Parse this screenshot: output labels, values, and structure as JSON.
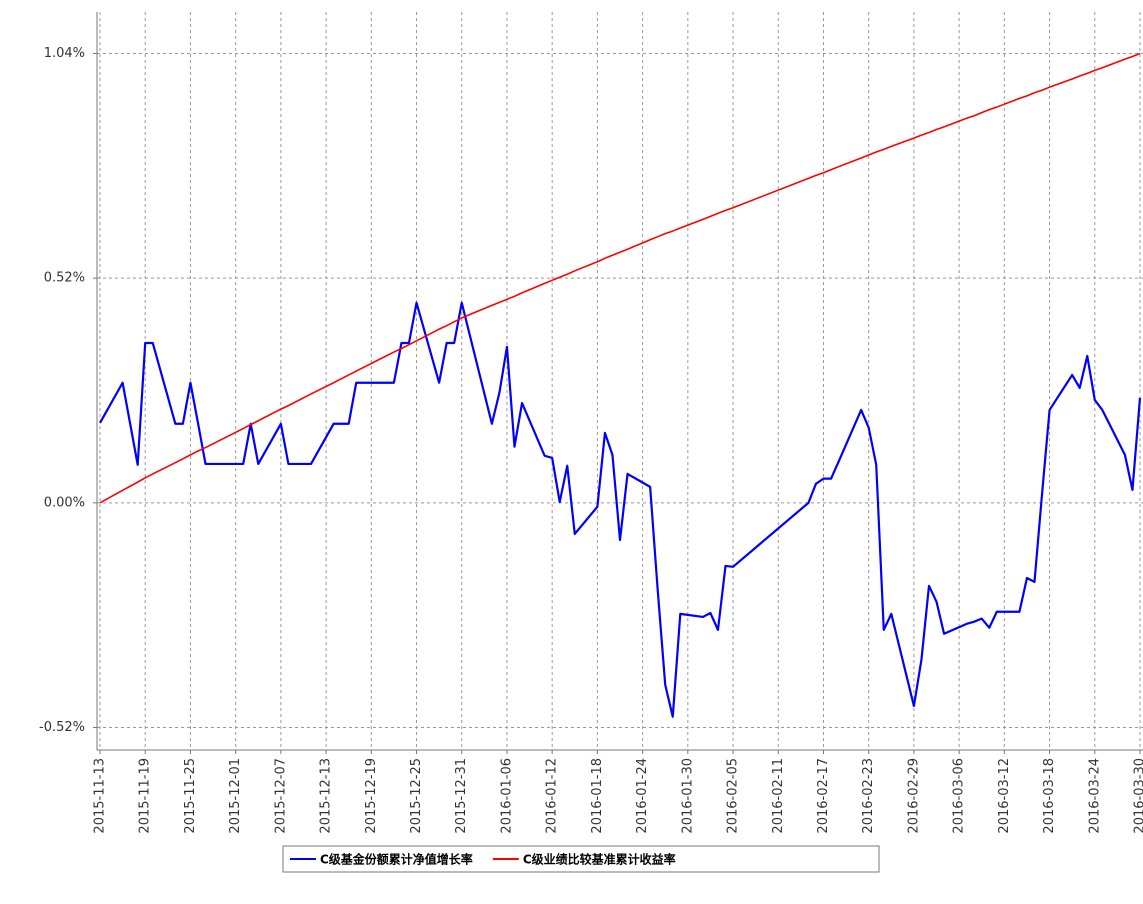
{
  "chart_data": {
    "type": "line",
    "x": [
      "2015-11-13",
      "2015-11-16",
      "2015-11-18",
      "2015-11-19",
      "2015-11-20",
      "2015-11-23",
      "2015-11-24",
      "2015-11-25",
      "2015-11-26",
      "2015-11-27",
      "2015-12-02",
      "2015-12-03",
      "2015-12-04",
      "2015-12-07",
      "2015-12-08",
      "2015-12-11",
      "2015-12-14",
      "2015-12-16",
      "2015-12-17",
      "2015-12-22",
      "2015-12-23",
      "2015-12-24",
      "2015-12-25",
      "2015-12-28",
      "2015-12-29",
      "2015-12-30",
      "2015-12-31",
      "2016-01-04",
      "2016-01-05",
      "2016-01-06",
      "2016-01-07",
      "2016-01-08",
      "2016-01-11",
      "2016-01-12",
      "2016-01-13",
      "2016-01-14",
      "2016-01-15",
      "2016-01-18",
      "2016-01-19",
      "2016-01-20",
      "2016-01-21",
      "2016-01-22",
      "2016-01-25",
      "2016-01-26",
      "2016-01-27",
      "2016-01-28",
      "2016-01-29",
      "2016-02-01",
      "2016-02-02",
      "2016-02-03",
      "2016-02-04",
      "2016-02-05",
      "2016-02-15",
      "2016-02-16",
      "2016-02-17",
      "2016-02-18",
      "2016-02-19",
      "2016-02-22",
      "2016-02-23",
      "2016-02-24",
      "2016-02-25",
      "2016-02-26",
      "2016-02-29",
      "2016-03-01",
      "2016-03-02",
      "2016-03-03",
      "2016-03-04",
      "2016-03-07",
      "2016-03-08",
      "2016-03-09",
      "2016-03-10",
      "2016-03-11",
      "2016-03-14",
      "2016-03-15",
      "2016-03-16",
      "2016-03-17",
      "2016-03-18",
      "2016-03-21",
      "2016-03-22",
      "2016-03-23",
      "2016-03-24",
      "2016-03-25",
      "2016-03-28",
      "2016-03-29",
      "2016-03-30"
    ],
    "series": [
      {
        "name": "C级基金份额累计净值增长率",
        "color": "#0000ff",
        "values": [
          0.185,
          0.278,
          0.088,
          0.37,
          0.37,
          0.183,
          0.183,
          0.278,
          0.185,
          0.09,
          0.09,
          0.183,
          0.09,
          0.183,
          0.09,
          0.09,
          0.183,
          0.183,
          0.278,
          0.278,
          0.37,
          0.37,
          0.463,
          0.278,
          0.37,
          0.37,
          0.463,
          0.183,
          0.255,
          0.361,
          0.13,
          0.231,
          0.109,
          0.104,
          0.002,
          0.086,
          -0.072,
          -0.009,
          0.162,
          0.111,
          -0.086,
          0.067,
          0.037,
          -0.201,
          -0.421,
          -0.495,
          -0.257,
          -0.264,
          -0.255,
          -0.294,
          -0.146,
          -0.148,
          0.0,
          0.044,
          0.056,
          0.056,
          0.095,
          0.215,
          0.174,
          0.088,
          -0.294,
          -0.257,
          -0.47,
          -0.363,
          -0.192,
          -0.229,
          -0.303,
          -0.28,
          -0.275,
          -0.268,
          -0.289,
          -0.252,
          -0.252,
          -0.174,
          -0.183,
          0.02,
          0.215,
          0.296,
          0.266,
          0.34,
          0.238,
          0.215,
          0.111,
          0.03,
          0.243
        ]
      },
      {
        "name": "C级业绩比较基准累计收益率",
        "color": "#ff0000",
        "values": [
          0,
          0.029,
          0.048,
          0.058,
          0.067,
          0.093,
          0.102,
          0.111,
          0.12,
          0.128,
          0.172,
          0.181,
          0.19,
          0.217,
          0.225,
          0.252,
          0.278,
          0.296,
          0.305,
          0.349,
          0.357,
          0.366,
          0.375,
          0.402,
          0.41,
          0.419,
          0.428,
          0.457,
          0.464,
          0.471,
          0.478,
          0.486,
          0.508,
          0.515,
          0.522,
          0.529,
          0.537,
          0.558,
          0.566,
          0.573,
          0.58,
          0.587,
          0.609,
          0.616,
          0.623,
          0.629,
          0.636,
          0.656,
          0.663,
          0.67,
          0.677,
          0.683,
          0.751,
          0.758,
          0.764,
          0.771,
          0.778,
          0.798,
          0.805,
          0.812,
          0.818,
          0.825,
          0.844,
          0.851,
          0.857,
          0.864,
          0.87,
          0.89,
          0.896,
          0.903,
          0.91,
          0.916,
          0.936,
          0.942,
          0.949,
          0.955,
          0.962,
          0.981,
          0.988,
          0.994,
          1.001,
          1.007,
          1.027,
          1.033,
          1.04
        ]
      }
    ],
    "xlim": [
      "2015-11-13",
      "2016-03-30"
    ],
    "xticks": [
      "2015-11-13",
      "2015-11-19",
      "2015-11-25",
      "2015-12-01",
      "2015-12-07",
      "2015-12-13",
      "2015-12-19",
      "2015-12-25",
      "2015-12-31",
      "2016-01-06",
      "2016-01-12",
      "2016-01-18",
      "2016-01-24",
      "2016-01-30",
      "2016-02-05",
      "2016-02-11",
      "2016-02-17",
      "2016-02-23",
      "2016-02-29",
      "2016-03-06",
      "2016-03-12",
      "2016-03-18",
      "2016-03-24",
      "2016-03-30"
    ],
    "ylim": [
      -0.572,
      1.136
    ],
    "yticks": [
      {
        "value": -0.52,
        "label": "-0.52%"
      },
      {
        "value": 0,
        "label": "0.00%"
      },
      {
        "value": 0.52,
        "label": "0.52%"
      },
      {
        "value": 1.04,
        "label": "1.04%"
      }
    ],
    "grid": true
  }
}
